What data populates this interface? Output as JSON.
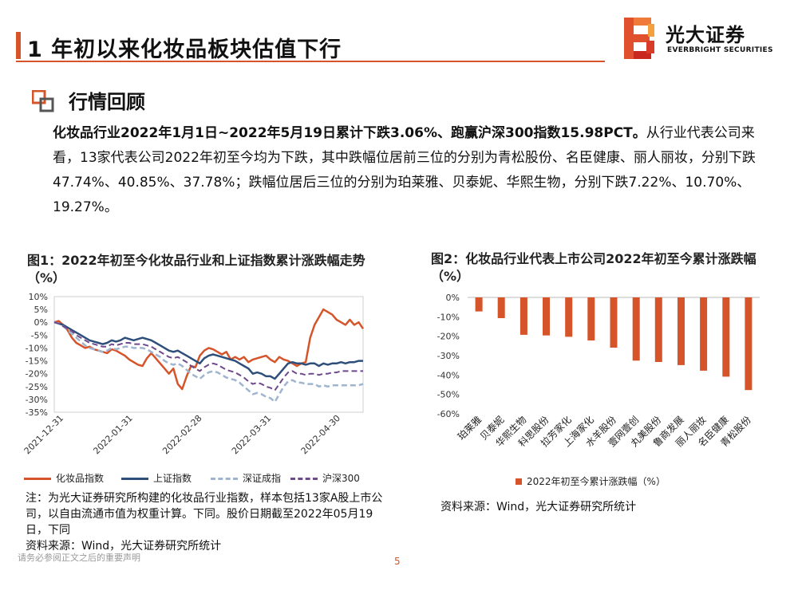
{
  "header": {
    "title": "1 年初以来化妆品板块估值下行",
    "logo_cn": "光大证券",
    "logo_en": "EVERBRIGHT SECURITIES"
  },
  "section": {
    "title": "行情回顾"
  },
  "summary": {
    "highlight": "化妆品行业2022年1月1日~2022年5月19日累计下跌3.06%、跑赢沪深300指数15.98PCT。",
    "body": "从行业代表公司来看，13家代表公司2022年初至今均为下跌，其中跌幅位居前三位的分别为青松股份、名臣健康、丽人丽妆，分别下跌47.74%、40.85%、37.78%；跌幅位居后三位的分别为珀莱雅、贝泰妮、华熙生物，分别下跌7.22%、10.70%、19.27%。"
  },
  "chart1": {
    "title": "图1：2022年初至今化妆品行业和上证指数累计涨跌幅走势（%）",
    "note": "注：为光大证券研究所构建的化妆品行业指数，样本包括13家A股上市公司，以自由流通市值为权重计算。下同。股价日期截至2022年05月19日，下同",
    "source": "资料来源：Wind，光大证券研究所统计"
  },
  "chart2": {
    "title": "图2：化妆品行业代表上市公司2022年初至今累计涨跌幅（%）",
    "source": "资料来源：Wind，光大证券研究所统计",
    "legend": "2022年初至今累计涨跌幅（%）"
  },
  "footer": {
    "disclaimer": "请务必参阅正文之后的重要声明",
    "page": "5"
  },
  "colors": {
    "accent": "#d6542a",
    "cosmetics": "#d6542a",
    "shanghai": "#2e4f7a",
    "shenzhen": "#9fb4cf",
    "hs300": "#6e4a8c"
  },
  "chart_data": [
    {
      "type": "line",
      "title": "图1：2022年初至今化妆品行业和上证指数累计涨跌幅走势（%）",
      "x_tick_labels": [
        "2021-12-31",
        "2022-01-31",
        "2022-02-28",
        "2022-03-31",
        "2022-04-30"
      ],
      "x": [
        0,
        2,
        4,
        6,
        8,
        10,
        12,
        14,
        16,
        18,
        20,
        22,
        24,
        26,
        28,
        30,
        32,
        34,
        36,
        38,
        40,
        42,
        44,
        46,
        48,
        50,
        52,
        54,
        56,
        58,
        60,
        62,
        64,
        66,
        68,
        70,
        72,
        74,
        76,
        78,
        80,
        82,
        84,
        86,
        88,
        90,
        92,
        94,
        96,
        98,
        100,
        102,
        104,
        106,
        108,
        110,
        112,
        114,
        116,
        118,
        120,
        122,
        124,
        126,
        128,
        130,
        132,
        134,
        136,
        138,
        140
      ],
      "xlim": [
        0,
        140
      ],
      "ylim": [
        -35,
        10
      ],
      "yticks": [
        10,
        5,
        0,
        -5,
        -10,
        -15,
        -20,
        -25,
        -30,
        -35
      ],
      "ytick_labels": [
        "10%",
        "5%",
        "0%",
        "-5%",
        "-10%",
        "-15%",
        "-20%",
        "-25%",
        "-30%",
        "-35%"
      ],
      "series": [
        {
          "name": "化妆品指数",
          "style": "solid",
          "values": [
            0,
            0.5,
            -1,
            -3,
            -6,
            -8,
            -9,
            -10,
            -9.5,
            -10.5,
            -11,
            -11.5,
            -12,
            -10.5,
            -11,
            -12,
            -13,
            -14.5,
            -15.5,
            -16.5,
            -17,
            -14,
            -12,
            -14,
            -16,
            -18,
            -20,
            -18,
            -24,
            -26,
            -21,
            -17,
            -17.5,
            -13,
            -11,
            -10,
            -10.5,
            -11.5,
            -12.5,
            -11.5,
            -14.5,
            -13.5,
            -14.5,
            -13.5,
            -15.5,
            -14.5,
            -14,
            -13.5,
            -13,
            -14.5,
            -15.5,
            -13.5,
            -14.5,
            -15,
            -16,
            -17,
            -16,
            -15.5,
            -6,
            -1,
            2,
            5,
            4,
            3,
            1,
            0,
            -1,
            1,
            -1,
            0,
            -2.5
          ]
        },
        {
          "name": "上证指数",
          "style": "solid",
          "values": [
            0,
            -0.5,
            -1,
            -2,
            -3,
            -4,
            -5,
            -6,
            -7,
            -7.5,
            -8,
            -8.5,
            -8,
            -7,
            -7.5,
            -7,
            -6,
            -6.5,
            -7,
            -6.5,
            -6,
            -6.5,
            -7,
            -8,
            -9,
            -10,
            -11,
            -11.5,
            -11,
            -12,
            -13,
            -14,
            -15,
            -16,
            -14,
            -13,
            -12.5,
            -13,
            -13.5,
            -14,
            -14.5,
            -15,
            -16,
            -17,
            -18,
            -20,
            -19.5,
            -20,
            -21,
            -21,
            -22,
            -20,
            -18,
            -16,
            -15.5,
            -16,
            -16,
            -16.5,
            -16,
            -16,
            -17,
            -16,
            -16.5,
            -16,
            -16,
            -15.5,
            -16,
            -15.5,
            -15.5,
            -15,
            -15
          ]
        },
        {
          "name": "深证成指",
          "style": "dashed",
          "values": [
            0,
            -0.5,
            -1.5,
            -3,
            -4.5,
            -6,
            -7.5,
            -9,
            -10,
            -10.5,
            -11,
            -11.5,
            -11,
            -10,
            -10.5,
            -10,
            -9.5,
            -9.5,
            -10,
            -10,
            -10,
            -10.5,
            -11.5,
            -12.5,
            -13.5,
            -15,
            -16,
            -16.5,
            -16,
            -17,
            -18.5,
            -20,
            -21,
            -22,
            -20.5,
            -19.5,
            -19,
            -19.5,
            -20.5,
            -21.5,
            -22,
            -22.5,
            -23.5,
            -25,
            -26.5,
            -28,
            -27.5,
            -28,
            -29,
            -29.5,
            -31,
            -28,
            -25,
            -23,
            -22.5,
            -23.5,
            -23.5,
            -24,
            -24,
            -24,
            -25,
            -24.5,
            -25,
            -24.5,
            -24.5,
            -24.5,
            -24.5,
            -24.5,
            -24.5,
            -24.5,
            -24
          ]
        },
        {
          "name": "沪深300",
          "style": "dashed",
          "values": [
            0,
            -0.5,
            -1.5,
            -2.5,
            -3.5,
            -5,
            -6,
            -7,
            -8,
            -8.5,
            -9,
            -9.5,
            -9.5,
            -8.5,
            -9,
            -8.5,
            -8,
            -8,
            -8.5,
            -8.5,
            -8.5,
            -9,
            -9.5,
            -10.5,
            -11.5,
            -12.5,
            -13.5,
            -14,
            -13.5,
            -14.5,
            -15.5,
            -17,
            -18,
            -19,
            -17.5,
            -16.5,
            -16,
            -16.5,
            -17.5,
            -18.5,
            -19,
            -19.5,
            -20.5,
            -21.5,
            -23,
            -24,
            -23.5,
            -24,
            -25,
            -25.5,
            -26.5,
            -24,
            -21.5,
            -19.5,
            -19,
            -20,
            -20,
            -20.5,
            -20,
            -20,
            -20.5,
            -20,
            -20,
            -19.5,
            -19.5,
            -19,
            -19,
            -19,
            -19,
            -19,
            -19
          ]
        }
      ]
    },
    {
      "type": "bar",
      "title": "图2：化妆品行业代表上市公司2022年初至今累计涨跌幅（%）",
      "categories": [
        "珀莱雅",
        "贝泰妮",
        "华熙生物",
        "科思股份",
        "拉芳家化",
        "上海家化",
        "水羊股份",
        "壹网壹创",
        "丸美股份",
        "鲁商发展",
        "丽人丽妆",
        "名臣健康",
        "青松股份"
      ],
      "values": [
        -7.22,
        -10.7,
        -19.27,
        -19.6,
        -20.3,
        -22.2,
        -25.9,
        -32.6,
        -33.3,
        -34.9,
        -37.78,
        -40.85,
        -47.74
      ],
      "ylim": [
        -60,
        0
      ],
      "yticks": [
        0,
        -10,
        -20,
        -30,
        -40,
        -50,
        -60
      ],
      "ytick_labels": [
        "0%",
        "-10%",
        "-20%",
        "-30%",
        "-40%",
        "-50%",
        "-60%"
      ],
      "legend": "2022年初至今累计涨跌幅（%）"
    }
  ]
}
